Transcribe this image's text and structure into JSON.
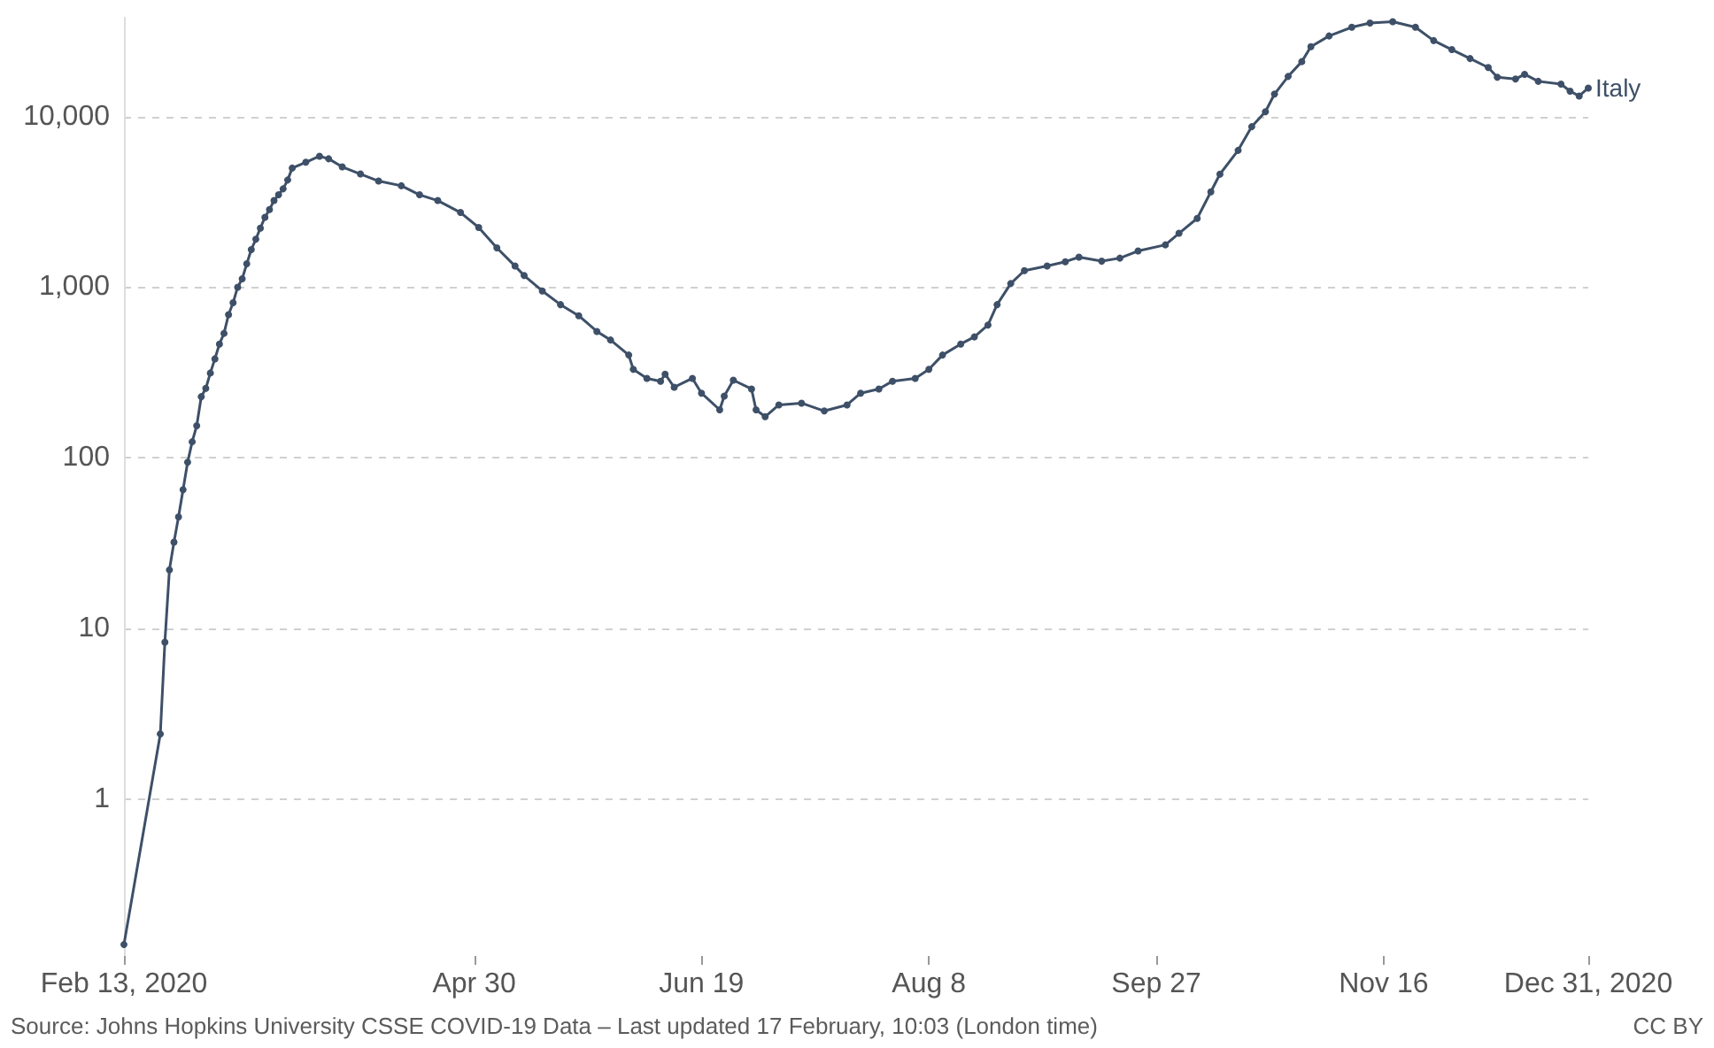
{
  "chart_data": {
    "type": "line",
    "x": [
      "2020-02-13",
      "2020-02-21",
      "2020-02-22",
      "2020-02-23",
      "2020-02-24",
      "2020-02-25",
      "2020-02-26",
      "2020-02-27",
      "2020-02-28",
      "2020-02-29",
      "2020-03-01",
      "2020-03-02",
      "2020-03-03",
      "2020-03-04",
      "2020-03-05",
      "2020-03-06",
      "2020-03-07",
      "2020-03-08",
      "2020-03-09",
      "2020-03-10",
      "2020-03-11",
      "2020-03-12",
      "2020-03-13",
      "2020-03-14",
      "2020-03-15",
      "2020-03-16",
      "2020-03-17",
      "2020-03-18",
      "2020-03-19",
      "2020-03-20",
      "2020-03-21",
      "2020-03-24",
      "2020-03-27",
      "2020-03-29",
      "2020-04-01",
      "2020-04-05",
      "2020-04-09",
      "2020-04-14",
      "2020-04-18",
      "2020-04-22",
      "2020-04-27",
      "2020-05-01",
      "2020-05-05",
      "2020-05-09",
      "2020-05-11",
      "2020-05-15",
      "2020-05-19",
      "2020-05-23",
      "2020-05-27",
      "2020-05-30",
      "2020-06-03",
      "2020-06-04",
      "2020-06-07",
      "2020-06-10",
      "2020-06-11",
      "2020-06-13",
      "2020-06-17",
      "2020-06-19",
      "2020-06-23",
      "2020-06-24",
      "2020-06-26",
      "2020-06-30",
      "2020-07-01",
      "2020-07-03",
      "2020-07-06",
      "2020-07-11",
      "2020-07-16",
      "2020-07-21",
      "2020-07-24",
      "2020-07-28",
      "2020-07-31",
      "2020-08-05",
      "2020-08-08",
      "2020-08-11",
      "2020-08-15",
      "2020-08-18",
      "2020-08-21",
      "2020-08-23",
      "2020-08-26",
      "2020-08-29",
      "2020-09-03",
      "2020-09-07",
      "2020-09-10",
      "2020-09-15",
      "2020-09-19",
      "2020-09-23",
      "2020-09-29",
      "2020-10-02",
      "2020-10-06",
      "2020-10-09",
      "2020-10-11",
      "2020-10-15",
      "2020-10-18",
      "2020-10-21",
      "2020-10-23",
      "2020-10-26",
      "2020-10-29",
      "2020-10-31",
      "2020-11-04",
      "2020-11-09",
      "2020-11-13",
      "2020-11-18",
      "2020-11-23",
      "2020-11-27",
      "2020-12-01",
      "2020-12-05",
      "2020-12-09",
      "2020-12-11",
      "2020-12-15",
      "2020-12-17",
      "2020-12-20",
      "2020-12-25",
      "2020-12-27",
      "2020-12-29",
      "2020-12-31"
    ],
    "series": [
      {
        "name": "Italy",
        "color": "#3e5068",
        "values": [
          0.14,
          2.4,
          8.3,
          22,
          32,
          45,
          65,
          94,
          124,
          154,
          228,
          255,
          314,
          380,
          464,
          536,
          690,
          810,
          1000,
          1120,
          1370,
          1660,
          1910,
          2220,
          2570,
          2850,
          3220,
          3480,
          3770,
          4250,
          4990,
          5400,
          5860,
          5660,
          5070,
          4610,
          4190,
          3930,
          3480,
          3220,
          2740,
          2240,
          1700,
          1330,
          1170,
          950,
          790,
          680,
          550,
          490,
          400,
          330,
          292,
          281,
          309,
          259,
          292,
          239,
          191,
          230,
          285,
          253,
          191,
          174,
          204,
          209,
          188,
          204,
          239,
          253,
          281,
          292,
          330,
          400,
          464,
          511,
          600,
          790,
          1050,
          1250,
          1330,
          1410,
          1500,
          1420,
          1480,
          1630,
          1770,
          2070,
          2530,
          3620,
          4600,
          6340,
          8730,
          10670,
          13550,
          17200,
          21000,
          25700,
          29700,
          33400,
          35400,
          36000,
          33400,
          27900,
          24700,
          21900,
          19400,
          17000,
          16600,
          17700,
          16100,
          15500,
          14100,
          13200,
          14700
        ]
      }
    ],
    "xlim": [
      "2020-02-13",
      "2020-12-31"
    ],
    "xticks": [
      {
        "value": "2020-02-13",
        "label": "Feb 13, 2020"
      },
      {
        "value": "2020-04-30",
        "label": "Apr 30"
      },
      {
        "value": "2020-06-19",
        "label": "Jun 19"
      },
      {
        "value": "2020-08-08",
        "label": "Aug 8"
      },
      {
        "value": "2020-09-27",
        "label": "Sep 27"
      },
      {
        "value": "2020-11-16",
        "label": "Nov 16"
      },
      {
        "value": "2020-12-31",
        "label": "Dec 31, 2020"
      }
    ],
    "ylim": [
      0.12,
      38000
    ],
    "yticks": [
      "1",
      "10",
      "100",
      {
        "value": 1000,
        "label": "1,000"
      },
      {
        "value": 10000,
        "label": "10,000"
      }
    ],
    "log": "y",
    "grid": "y",
    "legend": false,
    "marker": "circle",
    "line_style": "solid",
    "annotations": [
      "Source: Johns Hopkins University CSSE COVID-19 Data – Last updated 17 February, 10:03 (London time)",
      "CC BY"
    ]
  }
}
